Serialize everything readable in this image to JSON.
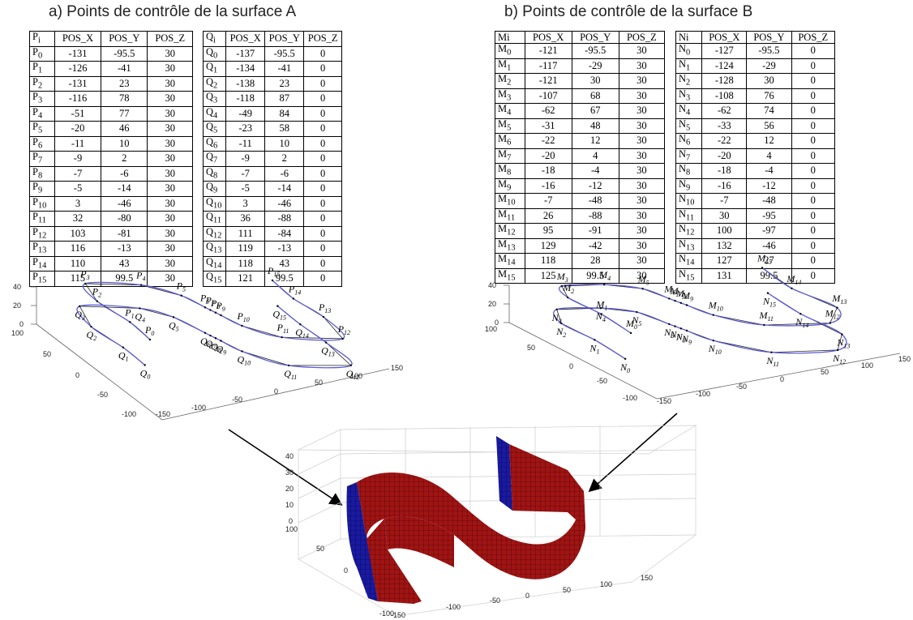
{
  "surface_a": {
    "title": "a) Points de contrôle de la surface A",
    "table_p": {
      "headers": [
        "P",
        "POS_X",
        "POS_Y",
        "POS_Z"
      ],
      "header_sub": "i",
      "rows": [
        [
          "P",
          "0",
          "-131",
          "-95.5",
          "30"
        ],
        [
          "P",
          "1",
          "-126",
          "-41",
          "30"
        ],
        [
          "P",
          "2",
          "-131",
          "23",
          "30"
        ],
        [
          "P",
          "3",
          "-116",
          "78",
          "30"
        ],
        [
          "P",
          "4",
          "-51",
          "77",
          "30"
        ],
        [
          "P",
          "5",
          "-20",
          "46",
          "30"
        ],
        [
          "P",
          "6",
          "-11",
          "10",
          "30"
        ],
        [
          "P",
          "7",
          "-9",
          "2",
          "30"
        ],
        [
          "P",
          "8",
          "-7",
          "-6",
          "30"
        ],
        [
          "P",
          "9",
          "-5",
          "-14",
          "30"
        ],
        [
          "P",
          "10",
          "3",
          "-46",
          "30"
        ],
        [
          "P",
          "11",
          "32",
          "-80",
          "30"
        ],
        [
          "P",
          "12",
          "103",
          "-81",
          "30"
        ],
        [
          "P",
          "13",
          "116",
          "-13",
          "30"
        ],
        [
          "P",
          "14",
          "110",
          "43",
          "30"
        ],
        [
          "P",
          "15",
          "115",
          "99.5",
          "30"
        ]
      ]
    },
    "table_q": {
      "headers": [
        "Q",
        "POS_X",
        "POS_Y",
        "POS_Z"
      ],
      "header_sub": "i",
      "rows": [
        [
          "Q",
          "0",
          "-137",
          "-95.5",
          "0"
        ],
        [
          "Q",
          "1",
          "-134",
          "-41",
          "0"
        ],
        [
          "Q",
          "2",
          "-138",
          "23",
          "0"
        ],
        [
          "Q",
          "3",
          "-118",
          "87",
          "0"
        ],
        [
          "Q",
          "4",
          "-49",
          "84",
          "0"
        ],
        [
          "Q",
          "5",
          "-23",
          "58",
          "0"
        ],
        [
          "Q",
          "6",
          "-11",
          "10",
          "0"
        ],
        [
          "Q",
          "7",
          "-9",
          "2",
          "0"
        ],
        [
          "Q",
          "8",
          "-7",
          "-6",
          "0"
        ],
        [
          "Q",
          "9",
          "-5",
          "-14",
          "0"
        ],
        [
          "Q",
          "10",
          "3",
          "-46",
          "0"
        ],
        [
          "Q",
          "11",
          "36",
          "-88",
          "0"
        ],
        [
          "Q",
          "12",
          "111",
          "-84",
          "0"
        ],
        [
          "Q",
          "13",
          "119",
          "-13",
          "0"
        ],
        [
          "Q",
          "14",
          "118",
          "43",
          "0"
        ],
        [
          "Q",
          "15",
          "121",
          "99.5",
          "0"
        ]
      ]
    }
  },
  "surface_b": {
    "title": "b) Points de contrôle de la surface B",
    "table_m": {
      "headers": [
        "Mi",
        "POS_X",
        "POS_Y",
        "POS_Z"
      ],
      "header_sub": "",
      "rows": [
        [
          "M",
          "0",
          "-121",
          "-95.5",
          "30"
        ],
        [
          "M",
          "1",
          "-117",
          "-29",
          "30"
        ],
        [
          "M",
          "2",
          "-121",
          "30",
          "30"
        ],
        [
          "M",
          "3",
          "-107",
          "68",
          "30"
        ],
        [
          "M",
          "4",
          "-62",
          "67",
          "30"
        ],
        [
          "M",
          "5",
          "-31",
          "48",
          "30"
        ],
        [
          "M",
          "6",
          "-22",
          "12",
          "30"
        ],
        [
          "M",
          "7",
          "-20",
          "4",
          "30"
        ],
        [
          "M",
          "8",
          "-18",
          "-4",
          "30"
        ],
        [
          "M",
          "9",
          "-16",
          "-12",
          "30"
        ],
        [
          "M",
          "10",
          "-7",
          "-48",
          "30"
        ],
        [
          "M",
          "11",
          "26",
          "-88",
          "30"
        ],
        [
          "M",
          "12",
          "95",
          "-91",
          "30"
        ],
        [
          "M",
          "13",
          "129",
          "-42",
          "30"
        ],
        [
          "M",
          "14",
          "118",
          "28",
          "30"
        ],
        [
          "M",
          "15",
          "125",
          "99.5",
          "30"
        ]
      ]
    },
    "table_n": {
      "headers": [
        "Ni",
        "POS_X",
        "POS_Y",
        "POS_Z"
      ],
      "header_sub": "",
      "rows": [
        [
          "N",
          "0",
          "-127",
          "-95.5",
          "0"
        ],
        [
          "N",
          "1",
          "-124",
          "-29",
          "0"
        ],
        [
          "N",
          "2",
          "-128",
          "30",
          "0"
        ],
        [
          "N",
          "3",
          "-108",
          "76",
          "0"
        ],
        [
          "N",
          "4",
          "-62",
          "74",
          "0"
        ],
        [
          "N",
          "5",
          "-33",
          "56",
          "0"
        ],
        [
          "N",
          "6",
          "-22",
          "12",
          "0"
        ],
        [
          "N",
          "7",
          "-20",
          "4",
          "0"
        ],
        [
          "N",
          "8",
          "-18",
          "-4",
          "0"
        ],
        [
          "N",
          "9",
          "-16",
          "-12",
          "0"
        ],
        [
          "N",
          "10",
          "-7",
          "-48",
          "0"
        ],
        [
          "N",
          "11",
          "30",
          "-95",
          "0"
        ],
        [
          "N",
          "12",
          "100",
          "-97",
          "0"
        ],
        [
          "N",
          "13",
          "132",
          "-46",
          "0"
        ],
        [
          "N",
          "14",
          "127",
          "27",
          "0"
        ],
        [
          "N",
          "15",
          "131",
          "99.5",
          "0"
        ]
      ]
    }
  },
  "plots": {
    "ticks_z": [
      "40",
      "20",
      "0"
    ],
    "ticks_y": [
      "100",
      "50",
      "0",
      "-50",
      "-100"
    ],
    "ticks_x": [
      "-150",
      "-100",
      "-50",
      "0",
      "50",
      "100",
      "150"
    ],
    "surface_ticks_z": [
      "40",
      "30",
      "20",
      "10",
      "0"
    ],
    "curve_color": "#5a5ad6",
    "polygon_color": "#222222",
    "surface_color_blue": "#1a1aa0",
    "surface_color_red": "#a01414"
  }
}
